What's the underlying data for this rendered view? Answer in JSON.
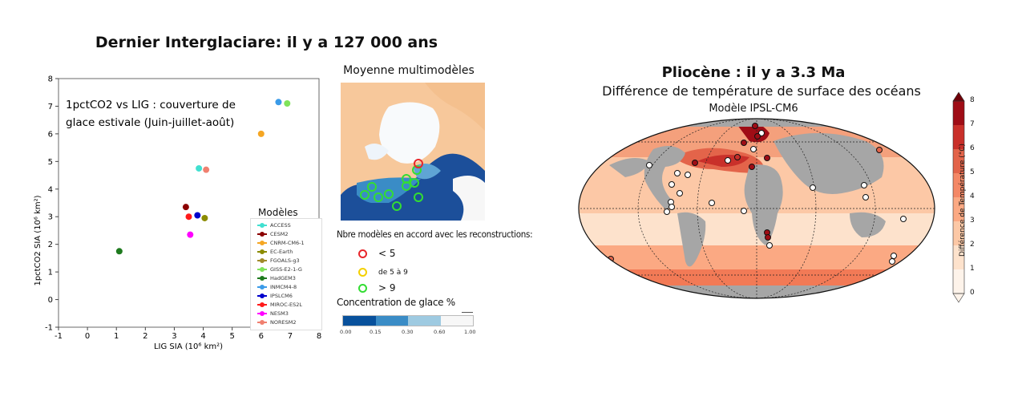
{
  "left_panel": {
    "title": "Dernier Interglaciare: il y a 127 000 ans",
    "map_title": "Moyenne multimodèles",
    "agreement_title": "Nbre modèles en accord avec les reconstructions:",
    "agreement_items": [
      {
        "label": "< 5",
        "color": "#e8262b"
      },
      {
        "label": "de 5 à 9",
        "color": "#f4d000"
      },
      {
        "label": "> 9",
        "color": "#33dd33"
      }
    ],
    "concentration_title": "Concentration de glace %",
    "concentration_ticks": [
      "0.00",
      "0.15",
      "0.30",
      "0.60",
      "1.00"
    ],
    "concentration_colors": [
      "#08519c",
      "#3a8cc6",
      "#9ecae1",
      "#f7f7f7"
    ]
  },
  "right_panel": {
    "title": "Pliocène : il y a 3.3 Ma",
    "subtitle": "Différence de température de surface des océans",
    "model_label": "Modèle IPSL-CM6",
    "colorbar_label": "Différence de Température (°C)",
    "colorbar_ticks": [
      "0",
      "1",
      "2",
      "3",
      "4",
      "5",
      "6",
      "7",
      "8"
    ],
    "colorbar_colors": [
      "#fdf3ea",
      "#fde2cc",
      "#fcc8a6",
      "#fba983",
      "#f48866",
      "#e3644a",
      "#c9302a",
      "#9f0d16",
      "#6e0008"
    ]
  },
  "chart_data": [
    {
      "type": "scatter",
      "title": "",
      "annotation": "1pctCO2 vs LIG : couverture de glace estivale (Juin-juillet-août)",
      "xlabel": "LIG SIA (10⁶ km²)",
      "ylabel": "1pctCO2 SIA (10⁶ km²)",
      "xlim": [
        -1,
        8
      ],
      "ylim": [
        -1,
        8
      ],
      "xticks": [
        "-1",
        "0",
        "1",
        "2",
        "3",
        "4",
        "5",
        "6",
        "7",
        "8"
      ],
      "yticks": [
        "-1",
        "0",
        "1",
        "2",
        "3",
        "4",
        "5",
        "6",
        "7",
        "8"
      ],
      "legend_title": "Modèles",
      "legend_position": "bottom-right",
      "series": [
        {
          "name": "ACCESS",
          "color": "#40e0d0",
          "x": 3.85,
          "y": 4.75
        },
        {
          "name": "CESM2",
          "color": "#8b0000",
          "x": 3.4,
          "y": 3.35
        },
        {
          "name": "CNRM-CM6-1",
          "color": "#f5a623",
          "x": 6.0,
          "y": 6.0
        },
        {
          "name": "EC-Earth",
          "color": "#8b8b00",
          "x": 4.05,
          "y": 2.95
        },
        {
          "name": "FGOALS-g3",
          "color": "#a08a2a",
          "x": null,
          "y": null
        },
        {
          "name": "GISS-E2-1-G",
          "color": "#7fe35a",
          "x": 6.9,
          "y": 7.1
        },
        {
          "name": "HadGEM3",
          "color": "#1e7a1e",
          "x": 1.1,
          "y": 1.75
        },
        {
          "name": "INMCM4-8",
          "color": "#3a9be8",
          "x": 6.6,
          "y": 7.15
        },
        {
          "name": "IPSLCM6",
          "color": "#0000cc",
          "x": 3.8,
          "y": 3.05
        },
        {
          "name": "MIROC-ES2L",
          "color": "#ff1a1a",
          "x": 3.5,
          "y": 3.0
        },
        {
          "name": "NESM3",
          "color": "#ff00ff",
          "x": 3.55,
          "y": 2.35
        },
        {
          "name": "NORESM2",
          "color": "#f08070",
          "x": 4.1,
          "y": 4.7
        }
      ]
    }
  ]
}
